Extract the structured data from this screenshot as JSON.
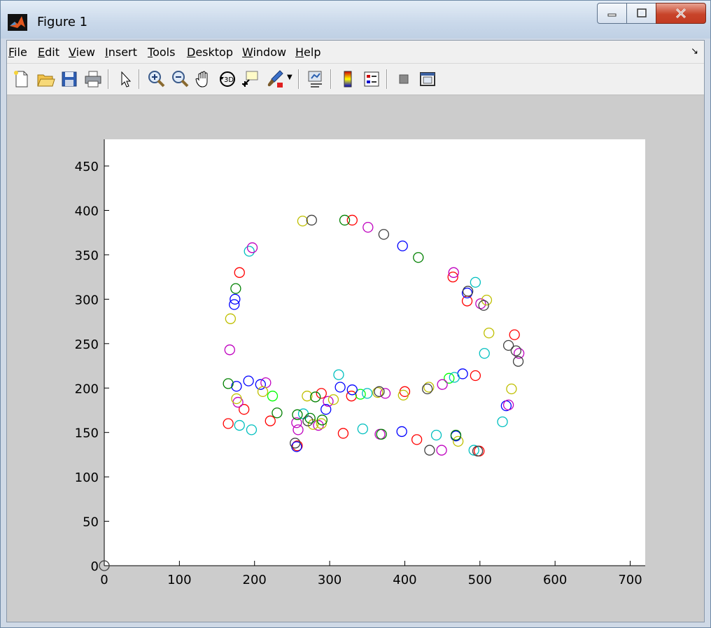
{
  "window": {
    "title": "Figure 1",
    "menu": [
      "File",
      "Edit",
      "View",
      "Insert",
      "Tools",
      "Desktop",
      "Window",
      "Help"
    ],
    "menu_mnemonics": [
      "F",
      "E",
      "V",
      "I",
      "T",
      "D",
      "W",
      "H"
    ],
    "toolbar_icons": [
      "new-figure-icon",
      "open-file-icon",
      "save-icon",
      "print-icon",
      "edit-plot-arrow-icon",
      "zoom-in-icon",
      "zoom-out-icon",
      "pan-hand-icon",
      "rotate-3d-icon",
      "data-cursor-icon",
      "brush-icon",
      "link-plot-icon",
      "colorbar-icon",
      "legend-icon",
      "hide-plot-tools-icon",
      "show-plot-tools-icon"
    ]
  },
  "chart_data": {
    "type": "scatter",
    "marker": "circle",
    "xlim": [
      0,
      720
    ],
    "ylim": [
      0,
      480
    ],
    "xticks": [
      0,
      100,
      200,
      300,
      400,
      500,
      600,
      700
    ],
    "yticks": [
      0,
      50,
      100,
      150,
      200,
      250,
      300,
      350,
      400,
      450
    ],
    "grid": false,
    "series": [
      {
        "color": "#ff0000",
        "points": [
          [
            180,
            330
          ],
          [
            186,
            176
          ],
          [
            165,
            160
          ],
          [
            221,
            163
          ],
          [
            289,
            194
          ],
          [
            318,
            149
          ],
          [
            329,
            191
          ],
          [
            330,
            389
          ],
          [
            416,
            142
          ],
          [
            464,
            325
          ],
          [
            483,
            298
          ],
          [
            494,
            214
          ],
          [
            499,
            129
          ],
          [
            546,
            260
          ],
          [
            400,
            196
          ],
          [
            257,
            135
          ]
        ]
      },
      {
        "color": "#00ff00",
        "points": [
          [
            224,
            191
          ],
          [
            341,
            193
          ],
          [
            459,
            211
          ]
        ]
      },
      {
        "color": "#0000ff",
        "points": [
          [
            173,
            294
          ],
          [
            174,
            300
          ],
          [
            176,
            202
          ],
          [
            192,
            208
          ],
          [
            208,
            204
          ],
          [
            295,
            176
          ],
          [
            314,
            201
          ],
          [
            330,
            198
          ],
          [
            396,
            151
          ],
          [
            397,
            360
          ],
          [
            468,
            146
          ],
          [
            477,
            216
          ],
          [
            483,
            307
          ],
          [
            535,
            180
          ],
          [
            256,
            134
          ]
        ]
      },
      {
        "color": "#00bfbf",
        "points": [
          [
            180,
            158
          ],
          [
            196,
            153
          ],
          [
            193,
            354
          ],
          [
            312,
            215
          ],
          [
            344,
            154
          ],
          [
            350,
            194
          ],
          [
            442,
            147
          ],
          [
            466,
            212
          ],
          [
            492,
            130
          ],
          [
            494,
            319
          ],
          [
            506,
            239
          ],
          [
            530,
            162
          ],
          [
            265,
            171
          ]
        ]
      },
      {
        "color": "#bf00bf",
        "points": [
          [
            167,
            243
          ],
          [
            197,
            358
          ],
          [
            215,
            206
          ],
          [
            178,
            184
          ],
          [
            258,
            153
          ],
          [
            256,
            161
          ],
          [
            298,
            185
          ],
          [
            351,
            381
          ],
          [
            367,
            148
          ],
          [
            374,
            194
          ],
          [
            450,
            204
          ],
          [
            449,
            130
          ],
          [
            465,
            330
          ],
          [
            501,
            295
          ],
          [
            538,
            181
          ],
          [
            552,
            239
          ],
          [
            285,
            158
          ]
        ]
      },
      {
        "color": "#bfbf00",
        "points": [
          [
            168,
            278
          ],
          [
            176,
            188
          ],
          [
            211,
            196
          ],
          [
            264,
            388
          ],
          [
            270,
            191
          ],
          [
            289,
            160
          ],
          [
            364,
            195
          ],
          [
            398,
            192
          ],
          [
            432,
            201
          ],
          [
            471,
            140
          ],
          [
            509,
            299
          ],
          [
            512,
            262
          ],
          [
            542,
            199
          ],
          [
            305,
            187
          ],
          [
            278,
            159
          ]
        ]
      },
      {
        "color": "#404040",
        "points": [
          [
            276,
            389
          ],
          [
            372,
            373
          ],
          [
            433,
            130
          ],
          [
            484,
            309
          ],
          [
            505,
            293
          ],
          [
            538,
            248
          ],
          [
            548,
            242
          ],
          [
            551,
            230
          ],
          [
            497,
            129
          ],
          [
            271,
            163
          ],
          [
            366,
            196
          ],
          [
            430,
            199
          ],
          [
            254,
            138
          ],
          [
            0,
            0
          ]
        ]
      },
      {
        "color": "#008000",
        "points": [
          [
            165,
            205
          ],
          [
            175,
            312
          ],
          [
            230,
            172
          ],
          [
            257,
            170
          ],
          [
            281,
            190
          ],
          [
            320,
            389
          ],
          [
            369,
            148
          ],
          [
            418,
            347
          ],
          [
            468,
            147
          ],
          [
            274,
            166
          ],
          [
            290,
            164
          ]
        ]
      }
    ]
  }
}
